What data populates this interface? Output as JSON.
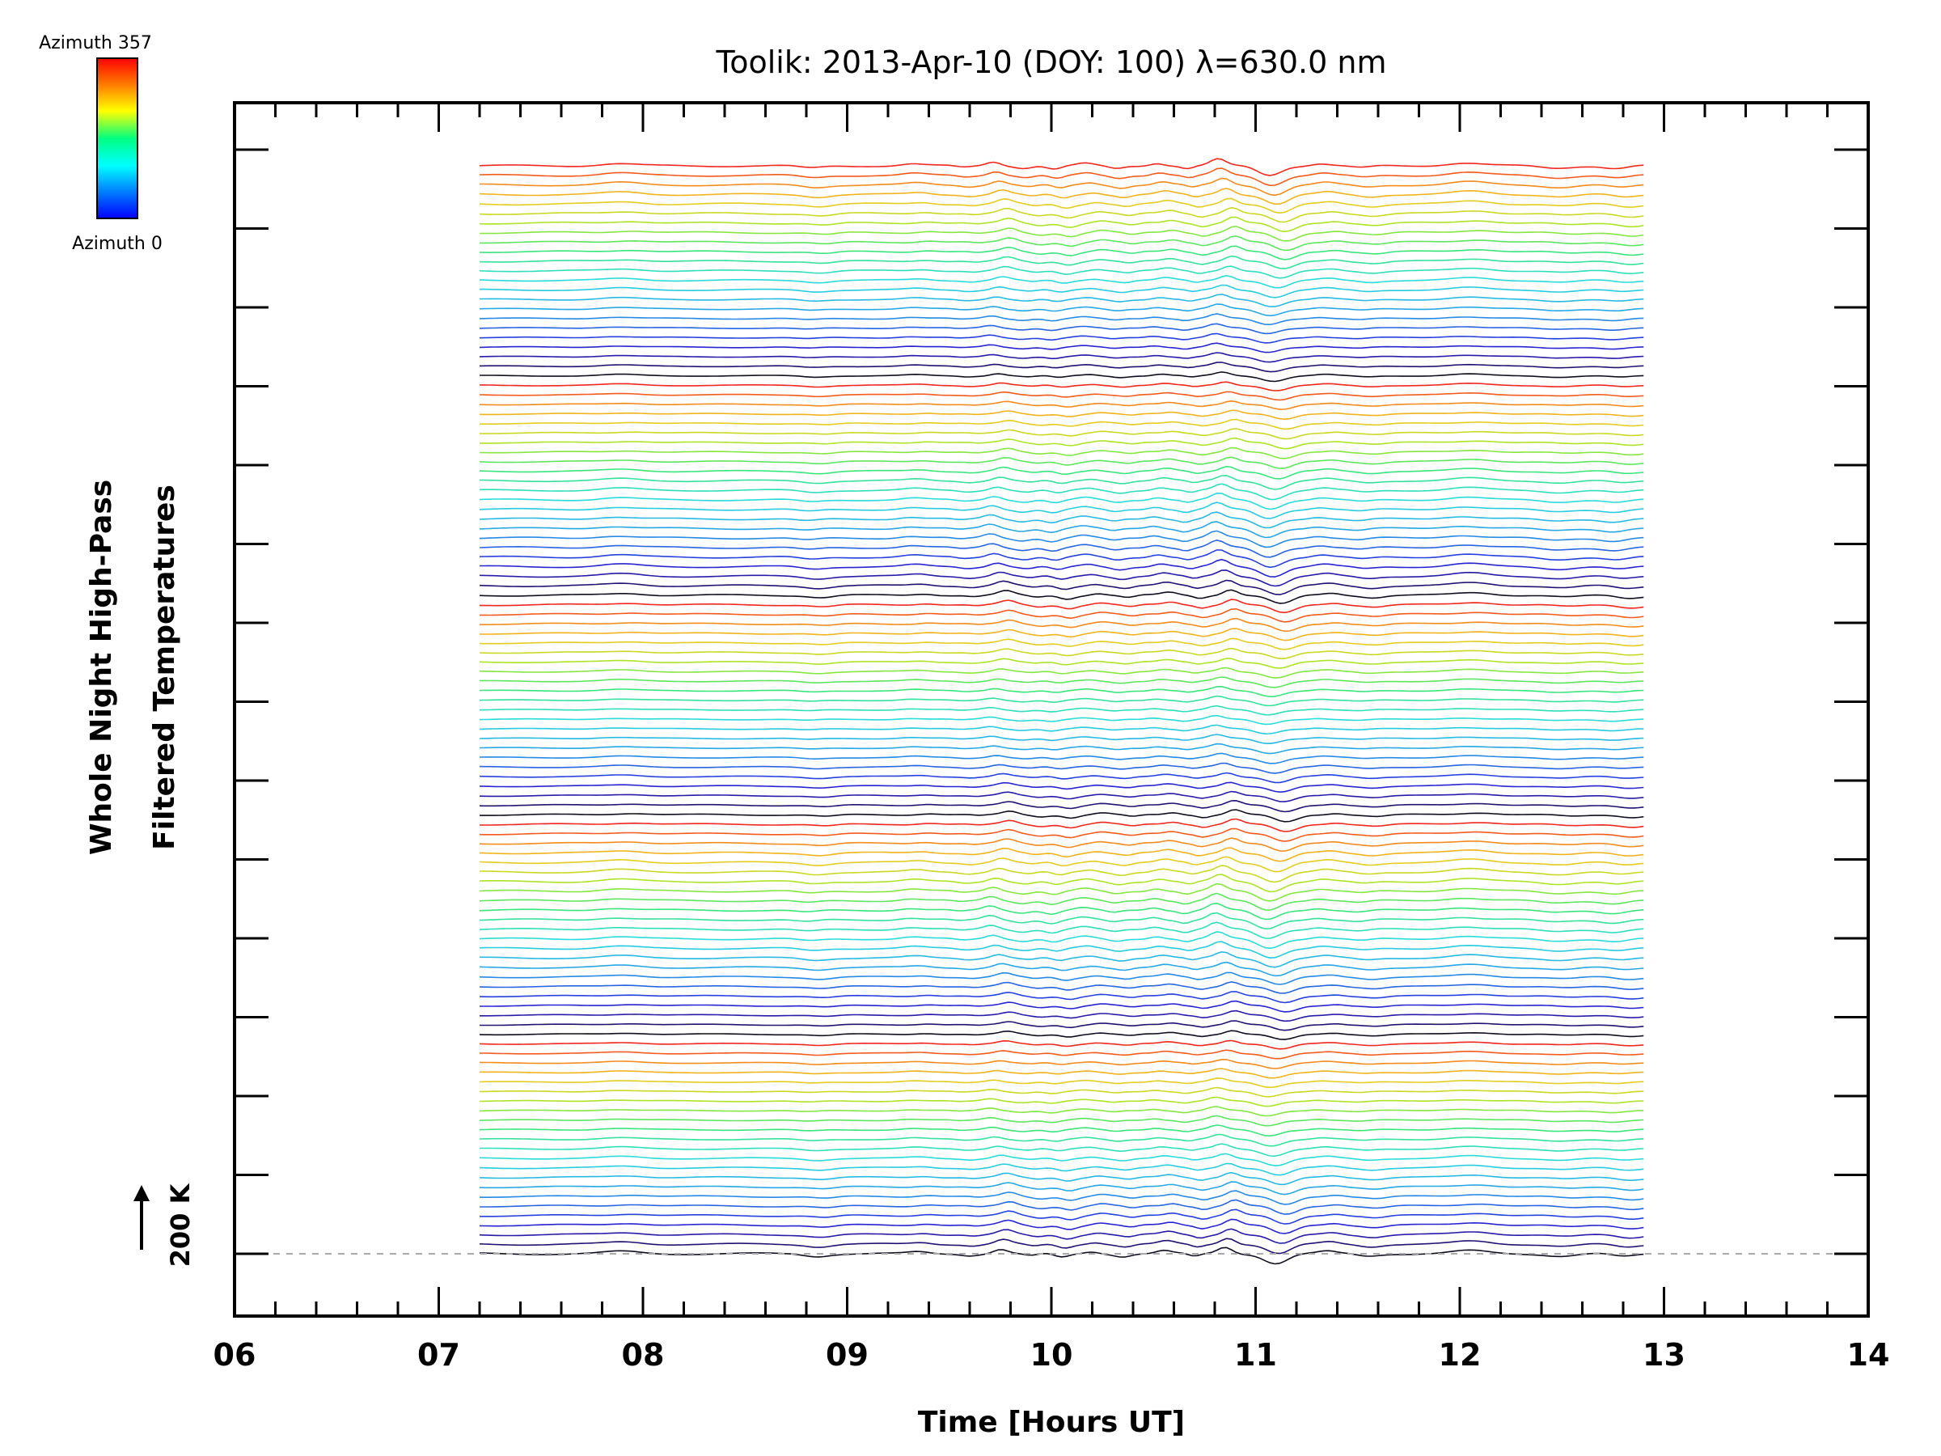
{
  "chart_data": {
    "type": "line",
    "title": "Toolik: 2013-Apr-10 (DOY: 100) λ=630.0 nm",
    "xlabel": "Time [Hours UT]",
    "ylabel_line1": "Whole Night High-Pass",
    "ylabel_line2": "Filtered Temperatures",
    "xlim": [
      6,
      14
    ],
    "x_tick_labels": [
      "06",
      "07",
      "08",
      "09",
      "10",
      "11",
      "12",
      "13",
      "14"
    ],
    "x_range_of_data": [
      7.2,
      12.9
    ],
    "series_count": 115,
    "series_spacing_K": 20,
    "scale_label": "200 K",
    "scale_value_K": 200,
    "baseline_dashed": true,
    "colorbar": {
      "top_label": "Azimuth  357",
      "bottom_label": "Azimuth  0",
      "azimuth_min": 0,
      "azimuth_max": 357,
      "colormap": "rainbow"
    },
    "colors": {
      "text": "#000000",
      "axes": "#000000",
      "baseline": "#aaaaaa",
      "background": "#ffffff"
    }
  }
}
